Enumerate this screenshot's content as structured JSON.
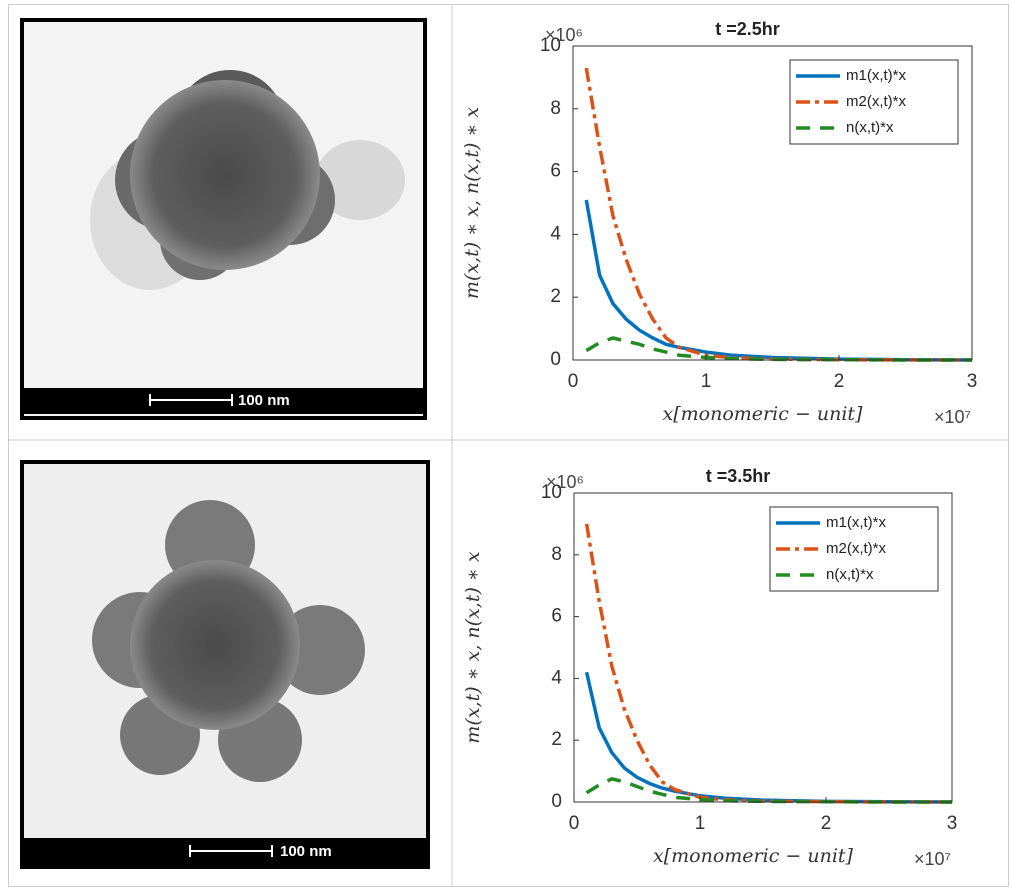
{
  "images": [
    {
      "scale_label": "100 nm"
    },
    {
      "scale_label": "100 nm"
    }
  ],
  "chart_data": [
    {
      "type": "line",
      "title": "t =2.5hr",
      "x_label": "x[monomeric − unit]",
      "x_multiplier": "×10⁷",
      "y_label": "m(x,t) ∗ x,  n(x,t) ∗ x",
      "y_multiplier": "×10⁶",
      "x": [
        0.1,
        0.2,
        0.3,
        0.4,
        0.5,
        0.6,
        0.7,
        0.8,
        1.0,
        1.2,
        1.5,
        2,
        2.5,
        3
      ],
      "series": [
        {
          "name": "m1(x,t)*x",
          "color": "#0072bd",
          "values": [
            5.1,
            2.7,
            1.8,
            1.3,
            0.95,
            0.7,
            0.5,
            0.4,
            0.25,
            0.15,
            0.08,
            0.03,
            0.01,
            0
          ]
        },
        {
          "name": "m2(x,t)*x",
          "color": "#d95319",
          "values": [
            9.3,
            6.8,
            4.6,
            3.2,
            2.1,
            1.3,
            0.7,
            0.4,
            0.15,
            0.07,
            0.03,
            0.01,
            0,
            0
          ]
        },
        {
          "name": "n(x,t)*x",
          "color": "#228b22",
          "values": [
            0.3,
            0.55,
            0.7,
            0.6,
            0.5,
            0.35,
            0.25,
            0.15,
            0.08,
            0.04,
            0.02,
            0.01,
            0,
            0
          ]
        }
      ],
      "xlim": [
        0,
        3
      ],
      "xticks": [
        0,
        1,
        2,
        3
      ],
      "ylim": [
        0,
        10
      ],
      "yticks": [
        0,
        2,
        4,
        6,
        8,
        10
      ],
      "legend": "upper right",
      "grid": false
    },
    {
      "type": "line",
      "title": "t =3.5hr",
      "x_label": "x[monomeric − unit]",
      "x_multiplier": "×10⁷",
      "y_label": "m(x,t) ∗ x,  n(x,t) ∗ x",
      "y_multiplier": "×10⁶",
      "x": [
        0.1,
        0.2,
        0.3,
        0.4,
        0.5,
        0.6,
        0.7,
        0.8,
        1.0,
        1.2,
        1.5,
        2,
        2.5,
        3
      ],
      "series": [
        {
          "name": "m1(x,t)*x",
          "color": "#0072bd",
          "values": [
            4.2,
            2.4,
            1.6,
            1.1,
            0.8,
            0.6,
            0.45,
            0.35,
            0.2,
            0.12,
            0.06,
            0.02,
            0.01,
            0
          ]
        },
        {
          "name": "m2(x,t)*x",
          "color": "#d95319",
          "values": [
            9.0,
            6.5,
            4.4,
            3.0,
            2.0,
            1.2,
            0.65,
            0.4,
            0.15,
            0.07,
            0.03,
            0.01,
            0,
            0
          ]
        },
        {
          "name": "n(x,t)*x",
          "color": "#228b22",
          "values": [
            0.3,
            0.55,
            0.75,
            0.65,
            0.5,
            0.35,
            0.25,
            0.15,
            0.08,
            0.04,
            0.02,
            0.01,
            0,
            0
          ]
        }
      ],
      "xlim": [
        0,
        3
      ],
      "xticks": [
        0,
        1,
        2,
        3
      ],
      "ylim": [
        0,
        10
      ],
      "yticks": [
        0,
        2,
        4,
        6,
        8,
        10
      ],
      "legend": "upper right",
      "grid": false
    }
  ]
}
